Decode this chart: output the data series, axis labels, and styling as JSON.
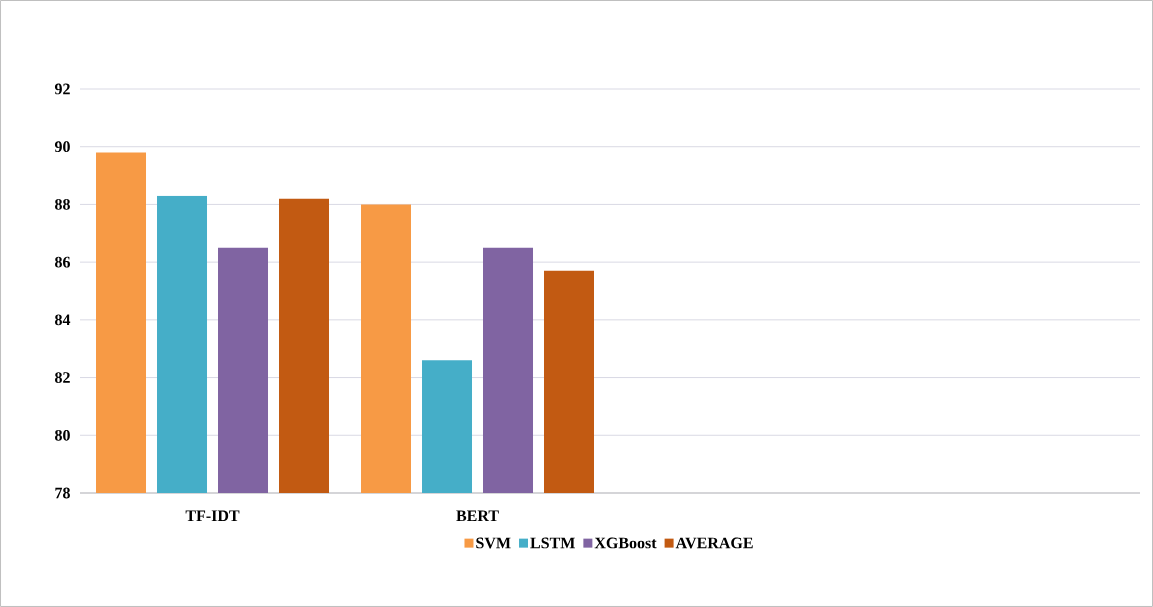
{
  "chart_data": {
    "type": "bar",
    "categories": [
      "TF-IDT",
      "BERT",
      null,
      null
    ],
    "series": [
      {
        "name": "SVM",
        "color": "#f79a45",
        "values": [
          89.8,
          88.0,
          null,
          null
        ]
      },
      {
        "name": "LSTM",
        "color": "#45aec8",
        "values": [
          88.3,
          82.6,
          null,
          null
        ]
      },
      {
        "name": "XGBoost",
        "color": "#8064a2",
        "values": [
          86.5,
          86.5,
          null,
          null
        ]
      },
      {
        "name": "AVERAGE",
        "color": "#c25a12",
        "values": [
          88.2,
          85.7,
          null,
          null
        ]
      }
    ],
    "ylim": [
      78,
      92
    ],
    "yticks": [
      78,
      80,
      82,
      84,
      86,
      88,
      90,
      92
    ],
    "grid": "y",
    "legend": "bottom"
  }
}
